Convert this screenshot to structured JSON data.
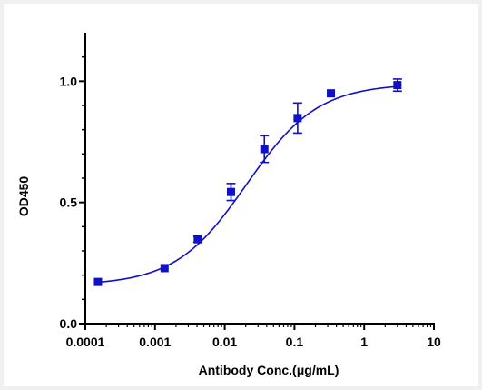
{
  "chart_data": {
    "type": "scatter",
    "xlabel": "Antibody Conc.(μg/mL)",
    "ylabel": "OD450",
    "x_scale": "log",
    "xlim": [
      0.0001,
      10
    ],
    "ylim": [
      0.0,
      1.2
    ],
    "x_tick_labels": [
      "0.0001",
      "0.001",
      "0.01",
      "0.1",
      "1",
      "10"
    ],
    "x_ticks": [
      0.0001,
      0.001,
      0.01,
      0.1,
      1,
      10
    ],
    "y_tick_labels": [
      "0.0",
      "0.5",
      "1.0"
    ],
    "y_ticks": [
      0.0,
      0.5,
      1.0
    ],
    "grid": false,
    "series": [
      {
        "color": "#1010c8",
        "points": [
          {
            "x": 0.000152,
            "y": 0.172,
            "err": 0.0
          },
          {
            "x": 0.00137,
            "y": 0.229,
            "err": 0.0
          },
          {
            "x": 0.0041,
            "y": 0.348,
            "err": 0.012
          },
          {
            "x": 0.0123,
            "y": 0.543,
            "err": 0.035
          },
          {
            "x": 0.037,
            "y": 0.72,
            "err": 0.055
          },
          {
            "x": 0.111,
            "y": 0.848,
            "err": 0.062
          },
          {
            "x": 0.333,
            "y": 0.95,
            "err": 0.0
          },
          {
            "x": 3.0,
            "y": 0.984,
            "err": 0.025
          }
        ],
        "fit": {
          "model": "4PL",
          "bottom": 0.158,
          "top": 0.99,
          "ec50": 0.0205,
          "hill": 0.85
        }
      }
    ]
  }
}
